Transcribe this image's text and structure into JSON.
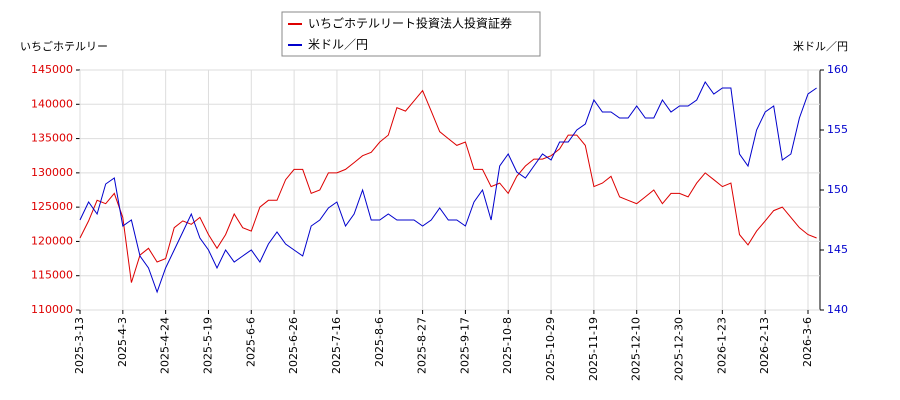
{
  "chart_data": {
    "type": "line",
    "ylabel": "いちごホテルリー",
    "y2label": "米ドル／円",
    "categories": [
      "2025-3-13",
      null,
      null,
      null,
      null,
      "2025-4-3",
      null,
      null,
      null,
      null,
      "2025-4-24",
      null,
      null,
      null,
      null,
      "2025-5-19",
      null,
      null,
      null,
      null,
      "2025-6-6",
      null,
      null,
      null,
      null,
      "2025-6-26",
      null,
      null,
      null,
      null,
      "2025-7-16",
      null,
      null,
      null,
      null,
      "2025-8-6",
      null,
      null,
      null,
      null,
      "2025-8-27",
      null,
      null,
      null,
      null,
      "2025-9-17",
      null,
      null,
      null,
      null,
      "2025-10-8",
      null,
      null,
      null,
      null,
      "2025-10-29",
      null,
      null,
      null,
      null,
      "2025-11-19",
      null,
      null,
      null,
      null,
      "2025-12-10",
      null,
      null,
      null,
      null,
      "2025-12-30",
      null,
      null,
      null,
      null,
      "2026-1-23",
      null,
      null,
      null,
      null,
      "2026-2-13",
      null,
      null,
      null,
      null,
      "2026-3-6",
      null
    ],
    "series": [
      {
        "name": "いちごホテルリート投資法人投資証券",
        "color": "#dd0000",
        "axis": "y",
        "values": [
          120500,
          123000,
          126000,
          125500,
          127000,
          123500,
          114000,
          118000,
          119000,
          117000,
          117500,
          122000,
          123000,
          122500,
          123500,
          121000,
          119000,
          121000,
          124000,
          122000,
          121500,
          125000,
          126000,
          126000,
          129000,
          130500,
          130500,
          127000,
          127500,
          130000,
          130000,
          130500,
          131500,
          132500,
          133000,
          134500,
          135500,
          139500,
          139000,
          140500,
          142000,
          139000,
          136000,
          135000,
          134000,
          134500,
          130500,
          130500,
          128000,
          128500,
          127000,
          129500,
          131000,
          132000,
          132000,
          132500,
          133500,
          135500,
          135500,
          134000,
          128000,
          128500,
          129500,
          126500,
          126000,
          125500,
          126500,
          127500,
          125500,
          127000,
          127000,
          126500,
          128500,
          130000,
          129000,
          128000,
          128500,
          121000,
          119500,
          121500,
          123000,
          124500,
          125000,
          123500,
          122000,
          121000,
          120500
        ]
      },
      {
        "name": "米ドル／円",
        "color": "#0000cc",
        "axis": "y2",
        "values": [
          147.5,
          149,
          148,
          150.5,
          151,
          147,
          147.5,
          144.5,
          143.5,
          141.5,
          143.5,
          145,
          146.5,
          148,
          146,
          145,
          143.5,
          145,
          144,
          144.5,
          145,
          144,
          145.5,
          146.5,
          145.5,
          145,
          144.5,
          147,
          147.5,
          148.5,
          149,
          147,
          148,
          150,
          147.5,
          147.5,
          148,
          147.5,
          147.5,
          147.5,
          147,
          147.5,
          148.5,
          147.5,
          147.5,
          147,
          149,
          150,
          147.5,
          152,
          153,
          151.5,
          151,
          152,
          153,
          152.5,
          154,
          154,
          155,
          155.5,
          157.5,
          156.5,
          156.5,
          156,
          156,
          157,
          156,
          156,
          157.5,
          156.5,
          157,
          157,
          157.5,
          159,
          158,
          158.5,
          158.5,
          153,
          152,
          155,
          156.5,
          157,
          152.5,
          153,
          156,
          158,
          158.5
        ]
      }
    ],
    "ylim": [
      110000,
      145000
    ],
    "yticks": [
      110000,
      115000,
      120000,
      125000,
      130000,
      135000,
      140000,
      145000
    ],
    "y2lim": [
      140,
      160
    ],
    "y2ticks": [
      140,
      145,
      150,
      155,
      160
    ],
    "grid": true
  }
}
